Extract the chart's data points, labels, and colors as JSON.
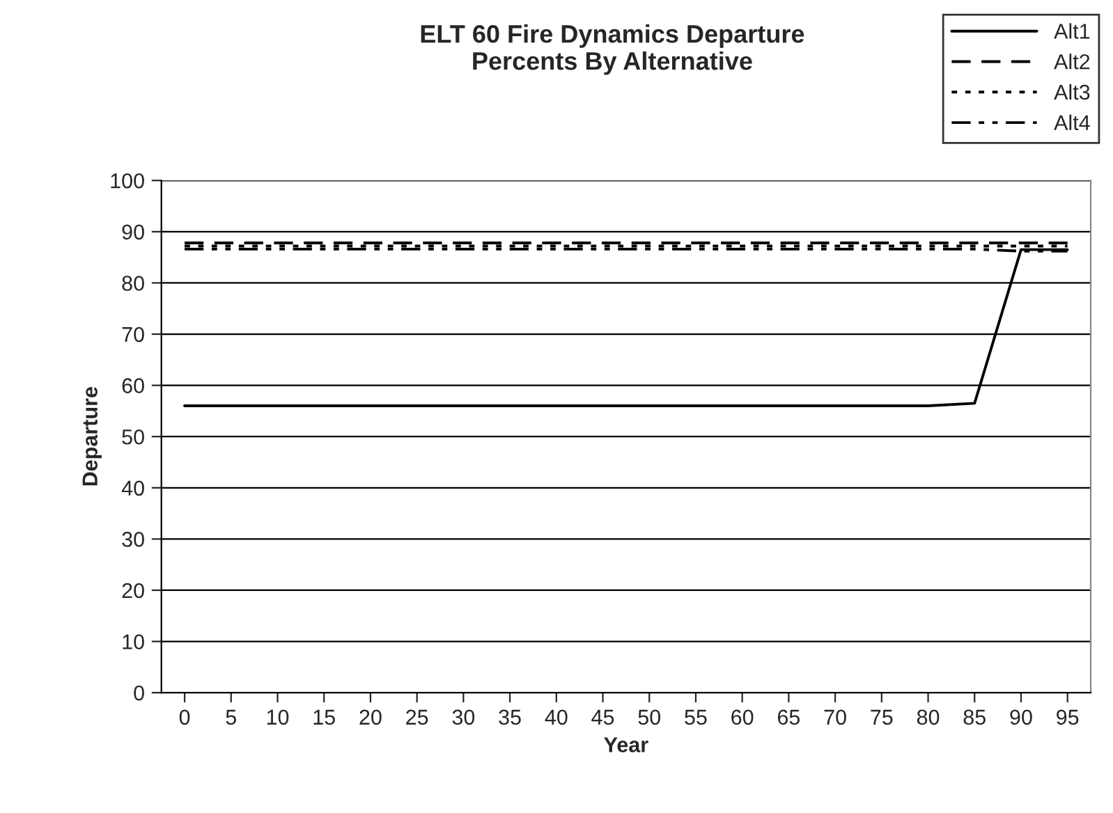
{
  "chart_data": {
    "type": "line",
    "title": "ELT 60 Fire Dynamics Departure\nPercents By Alternative",
    "xlabel": "Year",
    "ylabel": "Departure",
    "categories": [
      "0",
      "5",
      "10",
      "15",
      "20",
      "25",
      "30",
      "35",
      "40",
      "45",
      "50",
      "55",
      "60",
      "65",
      "70",
      "75",
      "80",
      "85",
      "90",
      "95"
    ],
    "series": [
      {
        "name": "Alt1",
        "color": "#000000",
        "line_style": "solid",
        "values": [
          56,
          56,
          56,
          56,
          56,
          56,
          56,
          56,
          56,
          56,
          56,
          56,
          56,
          56,
          56,
          56,
          56,
          56.5,
          86.5,
          86.5
        ]
      },
      {
        "name": "Alt2",
        "color": "#000000",
        "line_style": "dashed",
        "values": [
          87.8,
          87.8,
          87.8,
          87.8,
          87.8,
          87.8,
          87.8,
          87.8,
          87.8,
          87.8,
          87.8,
          87.8,
          87.8,
          87.8,
          87.8,
          87.8,
          87.8,
          87.8,
          87.8,
          87.8
        ]
      },
      {
        "name": "Alt3",
        "color": "#000000",
        "line_style": "dotted",
        "values": [
          87.2,
          87.2,
          87.2,
          87.2,
          87.2,
          87.2,
          87.2,
          87.2,
          87.2,
          87.2,
          87.2,
          87.2,
          87.2,
          87.2,
          87.2,
          87.2,
          87.2,
          87.2,
          87.2,
          87.2
        ]
      },
      {
        "name": "Alt4",
        "color": "#000000",
        "line_style": "dashdot",
        "values": [
          86.6,
          86.6,
          86.6,
          86.6,
          86.6,
          86.6,
          86.6,
          86.6,
          86.6,
          86.6,
          86.6,
          86.6,
          86.6,
          86.6,
          86.6,
          86.6,
          86.6,
          86.6,
          86.2,
          86.2
        ]
      }
    ],
    "ylim": [
      0,
      100
    ],
    "yticks": [
      0,
      10,
      20,
      30,
      40,
      50,
      60,
      70,
      80,
      90,
      100
    ],
    "grid": "y",
    "legend": "top right",
    "marker": "none"
  }
}
